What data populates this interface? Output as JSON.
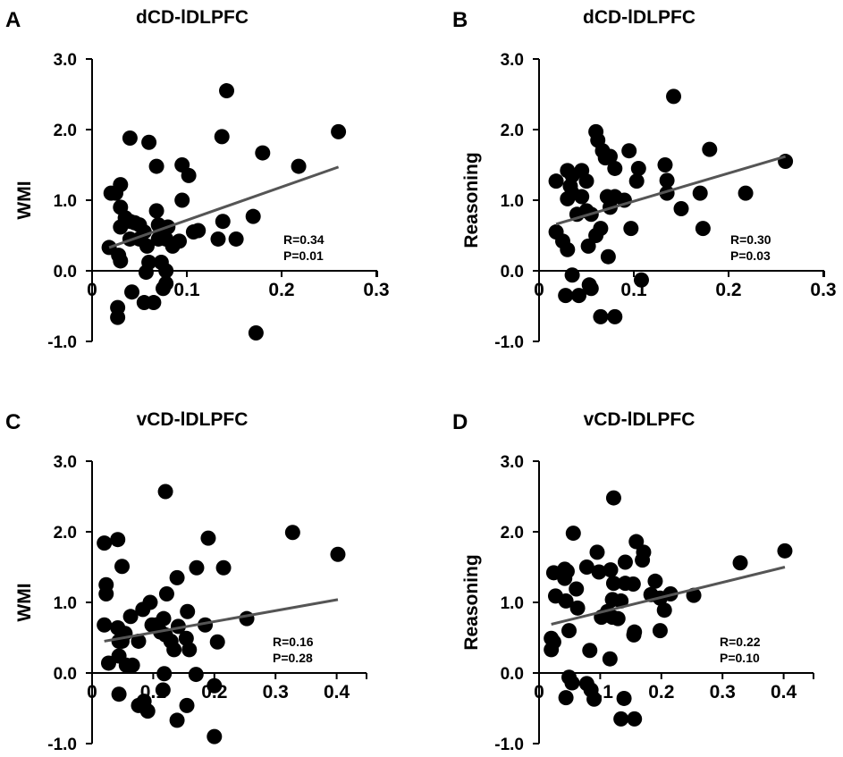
{
  "chart_data": [
    {
      "type": "scatter",
      "panel_label": "A",
      "title": "dCD-lDLPFC",
      "xlabel": "",
      "ylabel": "WMI",
      "xlim": [
        0,
        0.3
      ],
      "ylim": [
        -1.0,
        3.0
      ],
      "xticks": [
        "0",
        "0.1",
        "0.2",
        "0.3"
      ],
      "xtick_values": [
        0,
        0.1,
        0.2,
        0.3
      ],
      "yticks": [
        "3.0",
        "2.0",
        "1.0",
        "0.0",
        "-1.0"
      ],
      "ytick_values": [
        3,
        2,
        1,
        0,
        -1
      ],
      "stats": [
        "R=0.34",
        "P=0.01"
      ],
      "fit_line": [
        [
          0.018,
          0.33
        ],
        [
          0.26,
          1.47
        ]
      ],
      "points": [
        [
          0.02,
          1.1
        ],
        [
          0.025,
          1.1
        ],
        [
          0.03,
          1.22
        ],
        [
          0.03,
          0.9
        ],
        [
          0.035,
          0.75
        ],
        [
          0.04,
          0.7
        ],
        [
          0.045,
          0.68
        ],
        [
          0.05,
          0.65
        ],
        [
          0.03,
          0.62
        ],
        [
          0.055,
          0.55
        ],
        [
          0.04,
          0.45
        ],
        [
          0.05,
          0.45
        ],
        [
          0.018,
          0.33
        ],
        [
          0.028,
          0.22
        ],
        [
          0.03,
          0.14
        ],
        [
          0.04,
          1.88
        ],
        [
          0.06,
          1.82
        ],
        [
          0.068,
          1.48
        ],
        [
          0.068,
          0.85
        ],
        [
          0.07,
          0.65
        ],
        [
          0.075,
          0.6
        ],
        [
          0.08,
          0.62
        ],
        [
          0.07,
          0.45
        ],
        [
          0.078,
          0.45
        ],
        [
          0.085,
          0.35
        ],
        [
          0.092,
          0.42
        ],
        [
          0.058,
          0.35
        ],
        [
          0.06,
          0.12
        ],
        [
          0.057,
          -0.02
        ],
        [
          0.073,
          0.12
        ],
        [
          0.078,
          0.0
        ],
        [
          0.078,
          -0.18
        ],
        [
          0.075,
          -0.25
        ],
        [
          0.042,
          -0.3
        ],
        [
          0.055,
          -0.45
        ],
        [
          0.065,
          -0.45
        ],
        [
          0.027,
          -0.52
        ],
        [
          0.027,
          -0.66
        ],
        [
          0.095,
          1.5
        ],
        [
          0.102,
          1.35
        ],
        [
          0.095,
          1.0
        ],
        [
          0.107,
          0.55
        ],
        [
          0.112,
          0.57
        ],
        [
          0.133,
          0.45
        ],
        [
          0.138,
          0.7
        ],
        [
          0.137,
          1.9
        ],
        [
          0.142,
          2.55
        ],
        [
          0.152,
          0.45
        ],
        [
          0.17,
          0.77
        ],
        [
          0.18,
          1.67
        ],
        [
          0.218,
          1.48
        ],
        [
          0.26,
          1.97
        ],
        [
          0.173,
          -0.88
        ]
      ]
    },
    {
      "type": "scatter",
      "panel_label": "B",
      "title": "dCD-lDLPFC",
      "xlabel": "",
      "ylabel": "Reasoning",
      "xlim": [
        0,
        0.3
      ],
      "ylim": [
        -1.0,
        3.0
      ],
      "xticks": [
        "0",
        "0.1",
        "0.2",
        "0.3"
      ],
      "xtick_values": [
        0,
        0.1,
        0.2,
        0.3
      ],
      "yticks": [
        "3.0",
        "2.0",
        "1.0",
        "0.0",
        "-1.0"
      ],
      "ytick_values": [
        3,
        2,
        1,
        0,
        -1
      ],
      "stats": [
        "R=0.30",
        "P=0.03"
      ],
      "fit_line": [
        [
          0.018,
          0.66
        ],
        [
          0.26,
          1.62
        ]
      ],
      "points": [
        [
          0.018,
          1.27
        ],
        [
          0.018,
          0.55
        ],
        [
          0.025,
          0.42
        ],
        [
          0.03,
          0.3
        ],
        [
          0.03,
          1.42
        ],
        [
          0.035,
          1.35
        ],
        [
          0.033,
          1.2
        ],
        [
          0.03,
          1.02
        ],
        [
          0.035,
          1.1
        ],
        [
          0.045,
          1.05
        ],
        [
          0.045,
          1.42
        ],
        [
          0.05,
          1.27
        ],
        [
          0.04,
          0.8
        ],
        [
          0.05,
          0.85
        ],
        [
          0.055,
          0.8
        ],
        [
          0.052,
          0.35
        ],
        [
          0.06,
          0.5
        ],
        [
          0.065,
          0.6
        ],
        [
          0.06,
          1.97
        ],
        [
          0.062,
          1.85
        ],
        [
          0.067,
          1.7
        ],
        [
          0.07,
          1.6
        ],
        [
          0.075,
          1.62
        ],
        [
          0.08,
          1.45
        ],
        [
          0.072,
          1.05
        ],
        [
          0.075,
          0.9
        ],
        [
          0.08,
          1.05
        ],
        [
          0.09,
          1.0
        ],
        [
          0.073,
          0.2
        ],
        [
          0.095,
          1.7
        ],
        [
          0.097,
          0.6
        ],
        [
          0.103,
          1.27
        ],
        [
          0.105,
          1.45
        ],
        [
          0.108,
          -0.13
        ],
        [
          0.035,
          -0.06
        ],
        [
          0.028,
          -0.35
        ],
        [
          0.042,
          -0.35
        ],
        [
          0.053,
          -0.2
        ],
        [
          0.055,
          -0.25
        ],
        [
          0.065,
          -0.65
        ],
        [
          0.08,
          -0.65
        ],
        [
          0.133,
          1.5
        ],
        [
          0.135,
          1.28
        ],
        [
          0.135,
          1.1
        ],
        [
          0.142,
          2.47
        ],
        [
          0.15,
          0.88
        ],
        [
          0.17,
          1.1
        ],
        [
          0.173,
          0.6
        ],
        [
          0.18,
          1.72
        ],
        [
          0.218,
          1.1
        ],
        [
          0.26,
          1.55
        ]
      ]
    },
    {
      "type": "scatter",
      "panel_label": "C",
      "title": "vCD-lDLPFC",
      "xlabel": "",
      "ylabel": "WMI",
      "xlim": [
        0,
        0.45
      ],
      "ylim": [
        -1.0,
        3.0
      ],
      "xticks": [
        "0",
        "0.1",
        "0.2",
        "0.3",
        "0.4"
      ],
      "xtick_values": [
        0,
        0.1,
        0.2,
        0.3,
        0.4
      ],
      "yticks": [
        "3.0",
        "2.0",
        "1.0",
        "0.0",
        "-1.0"
      ],
      "ytick_values": [
        3,
        2,
        1,
        0,
        -1
      ],
      "stats": [
        "R=0.16",
        "P=0.28"
      ],
      "fit_line": [
        [
          0.02,
          0.45
        ],
        [
          0.402,
          1.04
        ]
      ],
      "points": [
        [
          0.02,
          1.84
        ],
        [
          0.042,
          1.89
        ],
        [
          0.049,
          1.51
        ],
        [
          0.023,
          1.25
        ],
        [
          0.023,
          1.12
        ],
        [
          0.02,
          0.68
        ],
        [
          0.042,
          0.64
        ],
        [
          0.054,
          0.56
        ],
        [
          0.044,
          0.45
        ],
        [
          0.049,
          0.45
        ],
        [
          0.063,
          0.8
        ],
        [
          0.076,
          0.45
        ],
        [
          0.083,
          0.9
        ],
        [
          0.095,
          1.0
        ],
        [
          0.098,
          0.68
        ],
        [
          0.105,
          0.68
        ],
        [
          0.117,
          0.77
        ],
        [
          0.112,
          0.58
        ],
        [
          0.12,
          0.54
        ],
        [
          0.122,
          1.12
        ],
        [
          0.139,
          1.35
        ],
        [
          0.141,
          0.66
        ],
        [
          0.129,
          0.45
        ],
        [
          0.134,
          0.33
        ],
        [
          0.154,
          0.49
        ],
        [
          0.156,
          0.87
        ],
        [
          0.159,
          0.33
        ],
        [
          0.171,
          1.49
        ],
        [
          0.185,
          0.68
        ],
        [
          0.19,
          1.91
        ],
        [
          0.205,
          0.44
        ],
        [
          0.215,
          1.49
        ],
        [
          0.253,
          0.77
        ],
        [
          0.328,
          1.99
        ],
        [
          0.402,
          1.68
        ],
        [
          0.12,
          2.57
        ],
        [
          0.027,
          0.14
        ],
        [
          0.044,
          0.24
        ],
        [
          0.056,
          0.11
        ],
        [
          0.066,
          0.11
        ],
        [
          0.118,
          -0.01
        ],
        [
          0.17,
          -0.02
        ],
        [
          0.2,
          -0.18
        ],
        [
          0.116,
          -0.24
        ],
        [
          0.044,
          -0.3
        ],
        [
          0.076,
          -0.46
        ],
        [
          0.085,
          -0.4
        ],
        [
          0.091,
          -0.54
        ],
        [
          0.155,
          -0.46
        ],
        [
          0.139,
          -0.67
        ],
        [
          0.2,
          -0.9
        ]
      ]
    },
    {
      "type": "scatter",
      "panel_label": "D",
      "title": "vCD-lDLPFC",
      "xlabel": "",
      "ylabel": "Reasoning",
      "xlim": [
        0,
        0.45
      ],
      "ylim": [
        -1.0,
        3.0
      ],
      "xticks": [
        "0",
        "0.1",
        "0.2",
        "0.3",
        "0.4"
      ],
      "xtick_values": [
        0,
        0.1,
        0.2,
        0.3,
        0.4
      ],
      "yticks": [
        "3.0",
        "2.0",
        "1.0",
        "0.0",
        "-1.0"
      ],
      "ytick_values": [
        3,
        2,
        1,
        0,
        -1
      ],
      "stats": [
        "R=0.22",
        "P=0.10"
      ],
      "fit_line": [
        [
          0.02,
          0.69
        ],
        [
          0.402,
          1.5
        ]
      ],
      "points": [
        [
          0.024,
          1.42
        ],
        [
          0.042,
          1.47
        ],
        [
          0.046,
          1.44
        ],
        [
          0.042,
          1.34
        ],
        [
          0.061,
          1.19
        ],
        [
          0.027,
          1.09
        ],
        [
          0.044,
          1.02
        ],
        [
          0.063,
          0.92
        ],
        [
          0.056,
          1.98
        ],
        [
          0.078,
          1.5
        ],
        [
          0.095,
          1.71
        ],
        [
          0.098,
          1.43
        ],
        [
          0.117,
          1.46
        ],
        [
          0.122,
          1.27
        ],
        [
          0.141,
          1.57
        ],
        [
          0.141,
          1.27
        ],
        [
          0.154,
          1.26
        ],
        [
          0.159,
          1.86
        ],
        [
          0.171,
          1.71
        ],
        [
          0.169,
          1.6
        ],
        [
          0.19,
          1.3
        ],
        [
          0.183,
          1.11
        ],
        [
          0.198,
          1.06
        ],
        [
          0.215,
          1.12
        ],
        [
          0.253,
          1.1
        ],
        [
          0.205,
          0.89
        ],
        [
          0.12,
          1.04
        ],
        [
          0.134,
          1.02
        ],
        [
          0.112,
          0.87
        ],
        [
          0.102,
          0.79
        ],
        [
          0.12,
          0.79
        ],
        [
          0.129,
          0.77
        ],
        [
          0.122,
          2.48
        ],
        [
          0.329,
          1.56
        ],
        [
          0.402,
          1.73
        ],
        [
          0.049,
          0.6
        ],
        [
          0.156,
          0.58
        ],
        [
          0.155,
          0.54
        ],
        [
          0.198,
          0.6
        ],
        [
          0.02,
          0.49
        ],
        [
          0.024,
          0.44
        ],
        [
          0.02,
          0.33
        ],
        [
          0.083,
          0.32
        ],
        [
          0.116,
          0.2
        ],
        [
          0.049,
          -0.06
        ],
        [
          0.054,
          -0.14
        ],
        [
          0.078,
          -0.15
        ],
        [
          0.085,
          -0.24
        ],
        [
          0.044,
          -0.35
        ],
        [
          0.09,
          -0.37
        ],
        [
          0.139,
          -0.36
        ],
        [
          0.134,
          -0.65
        ],
        [
          0.156,
          -0.65
        ]
      ]
    }
  ]
}
